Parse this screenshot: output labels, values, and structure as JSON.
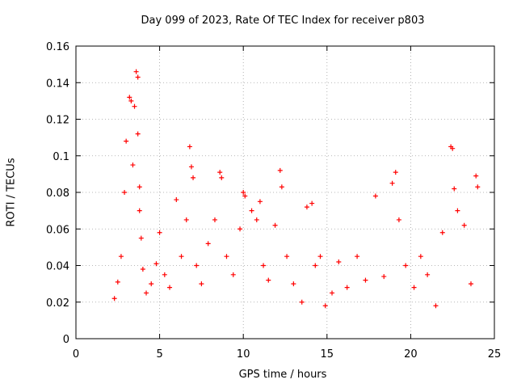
{
  "chart_data": {
    "type": "scatter",
    "title": "Day 099 of 2023, Rate Of TEC Index for receiver p803",
    "xlabel": "GPS time / hours",
    "ylabel": "ROTI / TECUs",
    "xlim": [
      0,
      25
    ],
    "ylim": [
      0,
      0.16
    ],
    "xticks": [
      "0",
      "5",
      "10",
      "15",
      "20",
      "25"
    ],
    "yticks": [
      "0",
      "0.02",
      "0.04",
      "0.06",
      "0.08",
      "0.1",
      "0.12",
      "0.14",
      "0.16"
    ],
    "grid": true,
    "marker": "+",
    "color": "#ff0000",
    "series": [
      {
        "x": [
          2.3,
          2.5,
          2.7,
          2.9,
          3.0,
          3.2,
          3.3,
          3.4,
          3.5,
          3.6,
          3.7,
          3.7,
          3.8,
          3.8,
          3.9,
          4.0,
          4.2,
          4.5,
          4.8,
          5.0,
          5.3,
          5.6,
          6.0,
          6.3,
          6.6,
          6.8,
          6.9,
          7.0,
          7.2,
          7.5,
          7.9,
          8.3,
          8.6,
          8.7,
          9.0,
          9.4,
          9.8,
          10.0,
          10.1,
          10.5,
          10.8,
          11.0,
          11.2,
          11.5,
          11.9,
          12.2,
          12.3,
          12.6,
          13.0,
          13.5,
          13.8,
          14.1,
          14.3,
          14.6,
          14.9,
          15.3,
          15.7,
          16.2,
          16.8,
          17.3,
          17.9,
          18.4,
          18.9,
          19.1,
          19.3,
          19.7,
          20.2,
          20.6,
          21.0,
          21.5,
          21.9,
          22.4,
          22.5,
          22.6,
          22.8,
          23.2,
          23.6,
          23.9,
          24.0
        ],
        "y": [
          0.022,
          0.031,
          0.045,
          0.08,
          0.108,
          0.132,
          0.13,
          0.095,
          0.127,
          0.146,
          0.143,
          0.112,
          0.083,
          0.07,
          0.055,
          0.038,
          0.025,
          0.03,
          0.041,
          0.058,
          0.035,
          0.028,
          0.076,
          0.045,
          0.065,
          0.105,
          0.094,
          0.088,
          0.04,
          0.03,
          0.052,
          0.065,
          0.091,
          0.088,
          0.045,
          0.035,
          0.06,
          0.08,
          0.078,
          0.07,
          0.065,
          0.075,
          0.04,
          0.032,
          0.062,
          0.092,
          0.083,
          0.045,
          0.03,
          0.02,
          0.072,
          0.074,
          0.04,
          0.045,
          0.018,
          0.025,
          0.042,
          0.028,
          0.045,
          0.032,
          0.078,
          0.034,
          0.085,
          0.091,
          0.065,
          0.04,
          0.028,
          0.045,
          0.035,
          0.018,
          0.058,
          0.105,
          0.104,
          0.082,
          0.07,
          0.062,
          0.03,
          0.089,
          0.083
        ]
      }
    ]
  }
}
